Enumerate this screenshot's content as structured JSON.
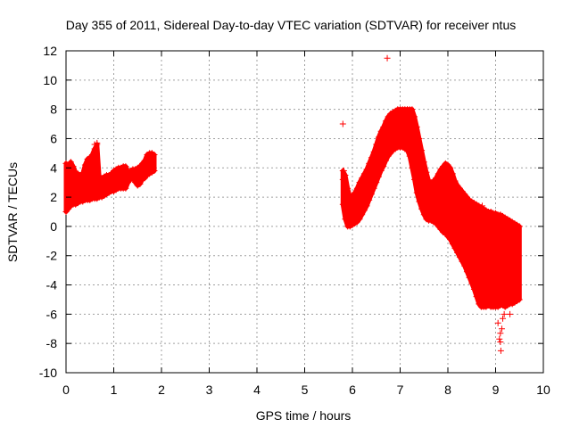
{
  "chart_data": {
    "type": "scatter",
    "title": "Day 355 of 2011, Sidereal Day-to-day VTEC variation (SDTVAR) for receiver ntus",
    "xlabel": "GPS time / hours",
    "ylabel": "SDTVAR / TECUs",
    "xlim": [
      0,
      10
    ],
    "ylim": [
      -10,
      12
    ],
    "x_ticks": [
      0,
      1,
      2,
      3,
      4,
      5,
      6,
      7,
      8,
      9,
      10
    ],
    "y_ticks": [
      -10,
      -8,
      -6,
      -4,
      -2,
      0,
      2,
      4,
      6,
      8,
      10,
      12
    ],
    "grid": true,
    "marker": "+",
    "series": [
      {
        "name": "SDTVAR",
        "color": "#ff0000",
        "bands": [
          {
            "x": [
              0.0,
              0.05,
              0.1,
              0.15,
              0.2,
              0.25,
              0.3,
              0.35,
              0.4,
              0.45,
              0.5,
              0.55,
              0.6,
              0.65,
              0.7,
              0.75,
              0.8,
              0.85,
              0.9,
              0.95,
              1.0,
              1.05,
              1.1,
              1.15,
              1.2,
              1.25,
              1.3,
              1.35,
              1.4,
              1.45,
              1.5,
              1.55,
              1.6,
              1.65,
              1.7,
              1.75,
              1.8,
              1.85
            ],
            "upper": [
              4.3,
              4.1,
              4.4,
              4.1,
              3.7,
              3.6,
              3.5,
              3.6,
              4.2,
              4.6,
              4.7,
              4.9,
              5.3,
              5.6,
              3.2,
              3.3,
              3.4,
              3.5,
              3.5,
              3.6,
              3.8,
              3.9,
              4.0,
              4.0,
              4.1,
              4.1,
              3.7,
              3.8,
              3.9,
              3.9,
              4.0,
              4.1,
              4.3,
              4.5,
              4.9,
              5.0,
              5.0,
              4.9
            ],
            "lower": [
              1.0,
              1.2,
              1.4,
              1.5,
              1.5,
              1.6,
              1.7,
              1.7,
              1.8,
              1.8,
              1.8,
              1.9,
              1.9,
              1.9,
              2.0,
              2.0,
              2.1,
              2.2,
              2.3,
              2.4,
              2.4,
              2.5,
              2.6,
              2.6,
              2.6,
              2.6,
              3.0,
              3.2,
              3.3,
              3.0,
              2.8,
              2.9,
              3.2,
              3.3,
              3.5,
              3.6,
              3.7,
              3.8
            ]
          },
          {
            "x": [
              5.8,
              5.85,
              5.9,
              5.95,
              6.0,
              6.05,
              6.1,
              6.15,
              6.2,
              6.25,
              6.3,
              6.35,
              6.4,
              6.45,
              6.5,
              6.55,
              6.6,
              6.65,
              6.7,
              6.75,
              6.8,
              6.85,
              6.9,
              6.95,
              7.0,
              7.05,
              7.1,
              7.15,
              7.2,
              7.25,
              7.3,
              7.35,
              7.4,
              7.45,
              7.5,
              7.55,
              7.6,
              7.65,
              7.7,
              7.75,
              7.8,
              7.85,
              7.9,
              7.95,
              8.0,
              8.05,
              8.1,
              8.15,
              8.2,
              8.25,
              8.3,
              8.35,
              8.4,
              8.45,
              8.5,
              8.55,
              8.6,
              8.65,
              8.7,
              8.75,
              8.8,
              8.85,
              8.9,
              8.95,
              9.0,
              9.05,
              9.1,
              9.15,
              9.2,
              9.25,
              9.3,
              9.35,
              9.4,
              9.45,
              9.5
            ],
            "upper": [
              3.8,
              3.5,
              2.6,
              2.0,
              2.1,
              2.3,
              2.6,
              3.0,
              3.3,
              3.6,
              3.9,
              4.3,
              4.7,
              5.1,
              5.6,
              6.1,
              6.5,
              6.8,
              7.2,
              7.5,
              7.7,
              7.8,
              7.9,
              8.0,
              8.0,
              8.0,
              8.0,
              8.0,
              8.0,
              8.0,
              7.5,
              6.8,
              6.0,
              5.2,
              4.4,
              3.7,
              3.1,
              3.0,
              3.1,
              3.3,
              3.6,
              3.9,
              4.1,
              4.3,
              4.2,
              4.0,
              3.6,
              3.1,
              2.8,
              2.6,
              2.4,
              2.2,
              2.0,
              1.8,
              1.7,
              1.6,
              1.5,
              1.4,
              1.3,
              1.2,
              1.1,
              1.0,
              1.0,
              0.9,
              0.9,
              0.8,
              0.8,
              0.7,
              0.6,
              0.5,
              0.4,
              0.3,
              0.2,
              0.1,
              0.0
            ],
            "lower": [
              1.5,
              0.5,
              0.0,
              0.0,
              0.1,
              0.2,
              0.3,
              0.5,
              0.8,
              1.1,
              1.4,
              1.8,
              2.2,
              2.6,
              3.0,
              3.4,
              3.8,
              4.1,
              4.5,
              4.8,
              5.0,
              5.2,
              5.3,
              5.4,
              5.4,
              5.4,
              5.3,
              5.2,
              4.8,
              4.0,
              3.2,
              2.3,
              1.7,
              1.2,
              0.8,
              0.5,
              0.4,
              0.4,
              0.3,
              0.2,
              0.0,
              -0.2,
              -0.4,
              -0.5,
              -0.7,
              -0.9,
              -1.2,
              -1.5,
              -1.8,
              -2.1,
              -2.4,
              -2.7,
              -3.1,
              -3.5,
              -3.9,
              -4.3,
              -4.8,
              -5.3,
              -5.5,
              -5.5,
              -5.5,
              -5.4,
              -5.5,
              -5.5,
              -5.5,
              -5.5,
              -5.4,
              -5.4,
              -5.5,
              -5.4,
              -5.3,
              -5.3,
              -5.2,
              -5.1,
              -5.0
            ]
          }
        ],
        "points": [
          {
            "x": 5.8,
            "y": 7.0
          },
          {
            "x": 6.73,
            "y": 11.5
          },
          {
            "x": 8.72,
            "y": 1.4
          },
          {
            "x": 9.05,
            "y": -6.6
          },
          {
            "x": 9.1,
            "y": -7.3
          },
          {
            "x": 9.13,
            "y": -7.0
          },
          {
            "x": 9.08,
            "y": -7.7
          },
          {
            "x": 9.1,
            "y": -7.9
          },
          {
            "x": 9.11,
            "y": -8.5
          },
          {
            "x": 9.15,
            "y": -6.3
          },
          {
            "x": 9.18,
            "y": -6.0
          },
          {
            "x": 9.3,
            "y": -6.0
          },
          {
            "x": 5.82,
            "y": 3.8
          },
          {
            "x": 5.8,
            "y": 3.2
          },
          {
            "x": 0.6,
            "y": 5.6
          },
          {
            "x": 0.65,
            "y": 5.7
          },
          {
            "x": 1.8,
            "y": 5.0
          }
        ]
      }
    ]
  }
}
